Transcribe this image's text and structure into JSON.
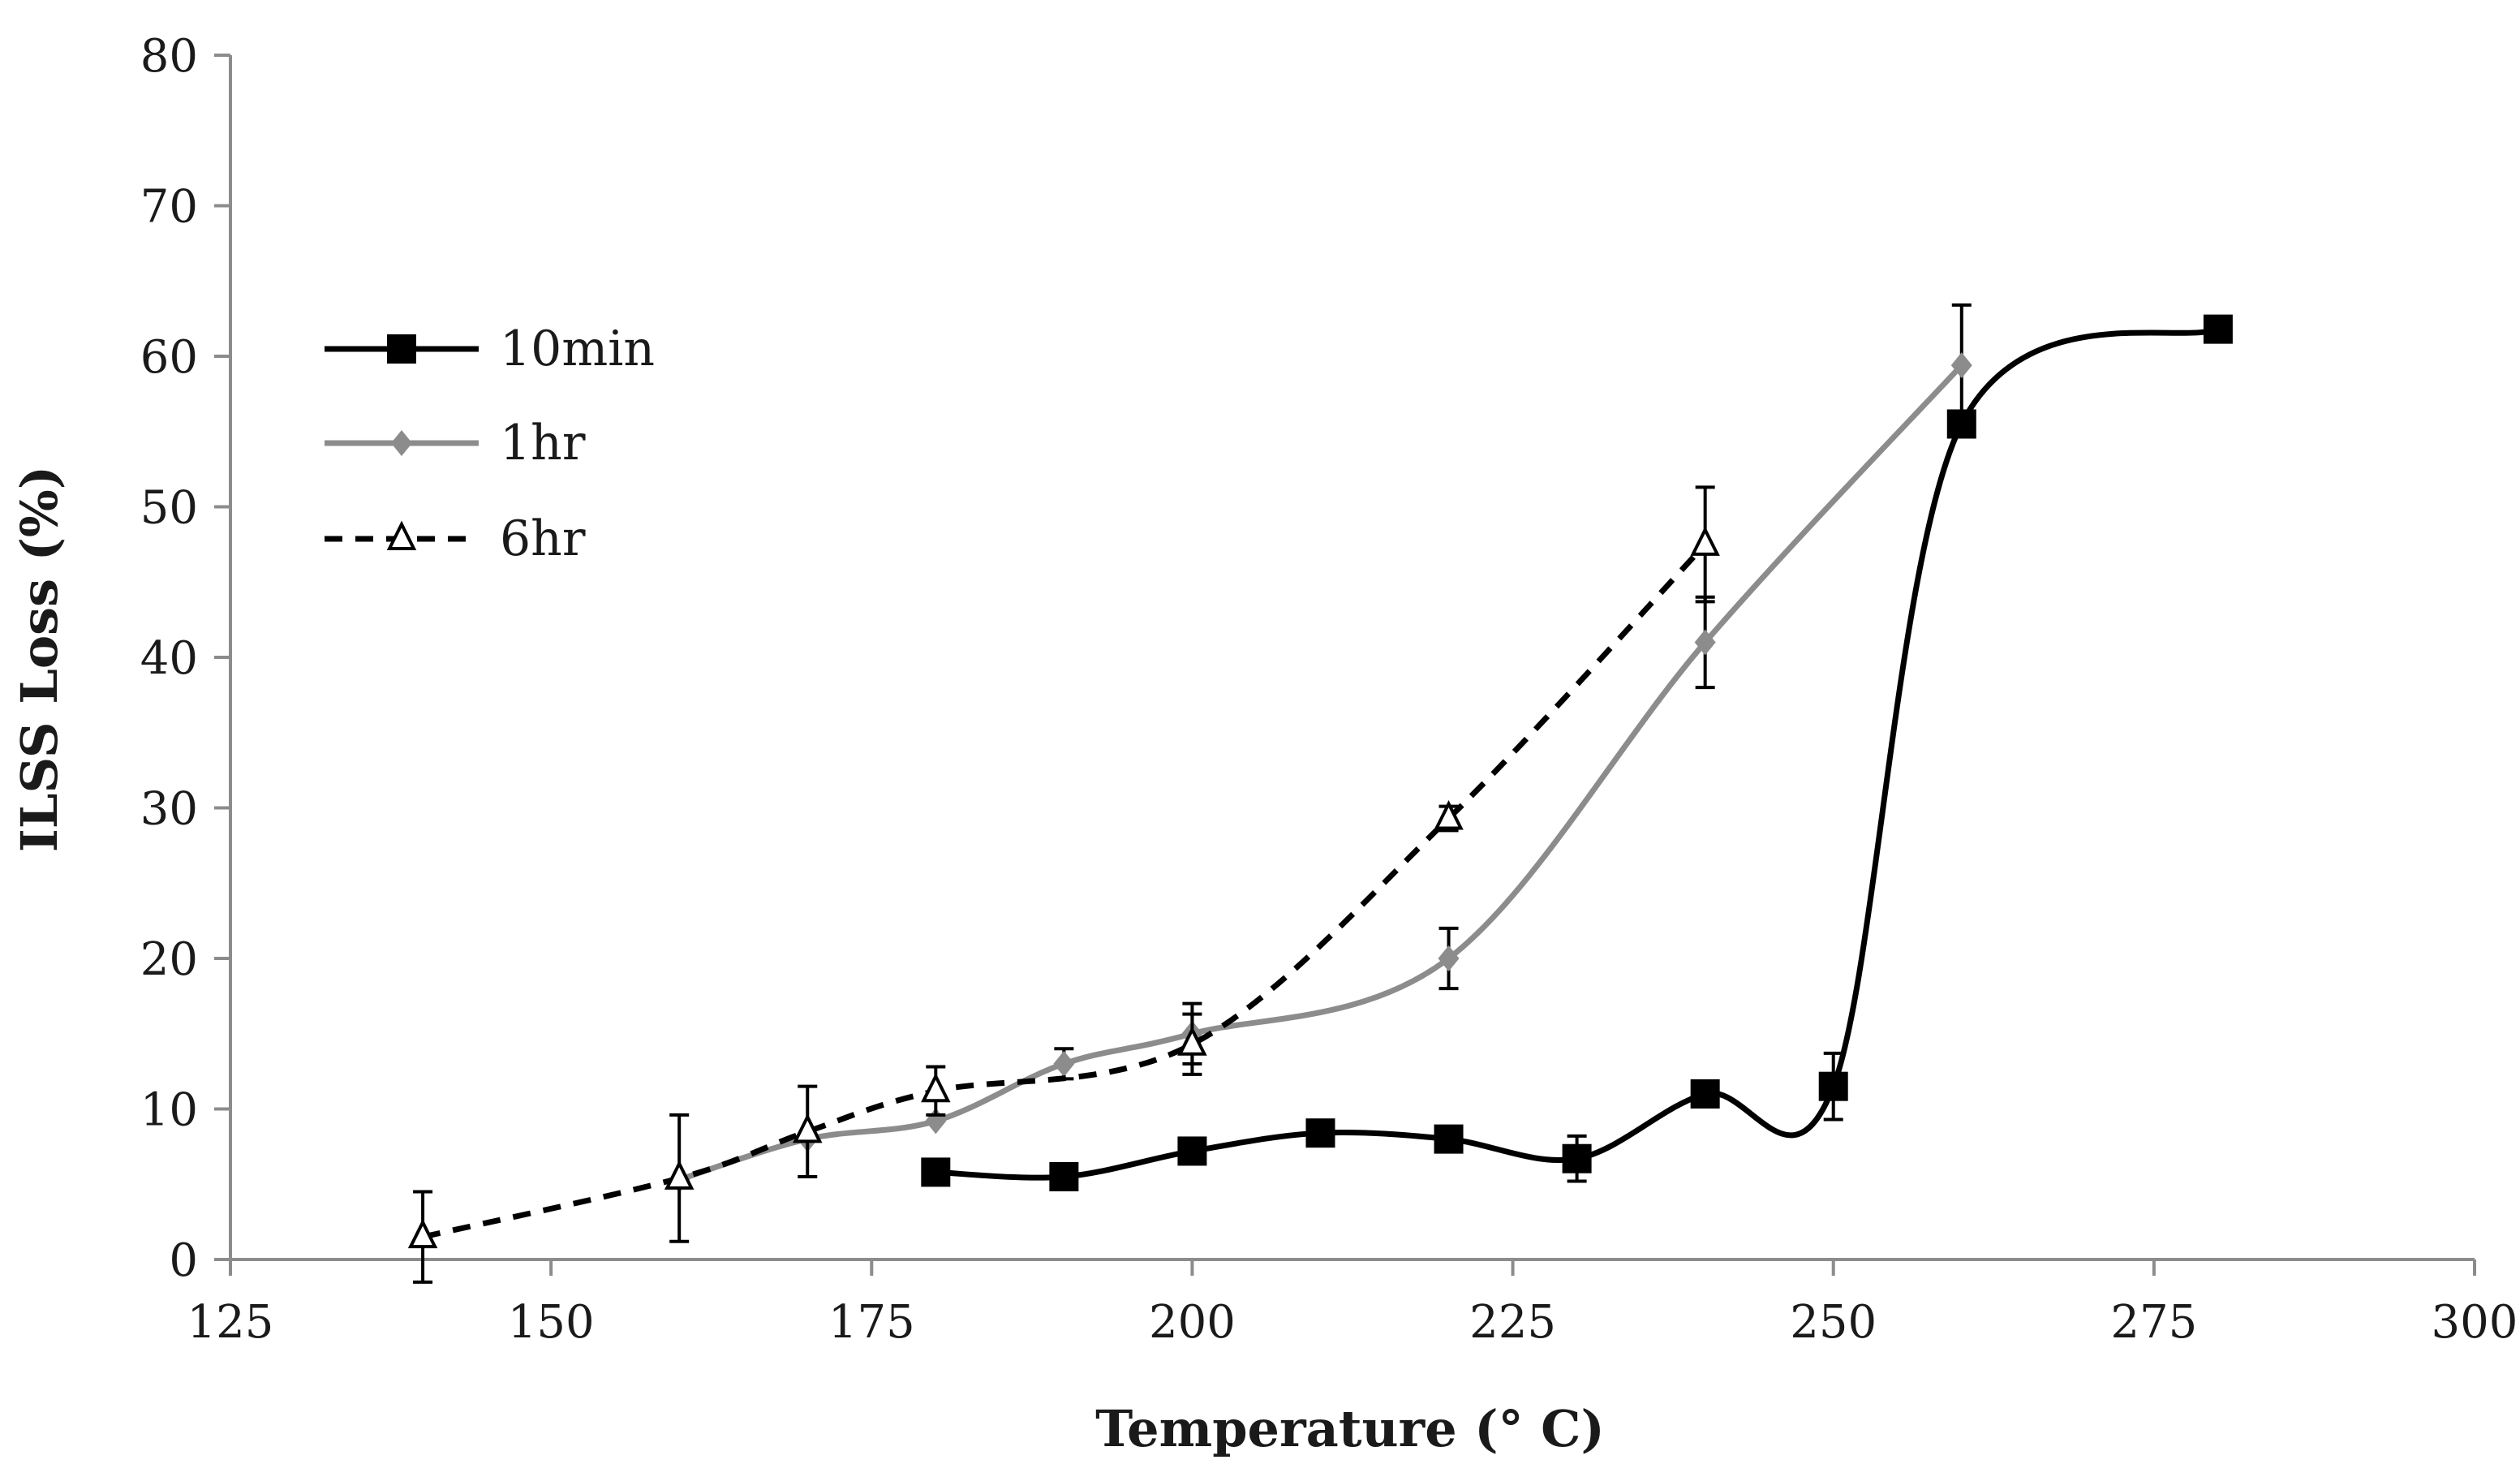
{
  "chart_data": {
    "type": "line",
    "title": "",
    "xlabel": "Temperature (° C)",
    "ylabel": "ILSS Loss (%)",
    "xlim": [
      125,
      300
    ],
    "ylim": [
      0,
      80
    ],
    "xticks": [
      125,
      150,
      175,
      200,
      225,
      250,
      275,
      300
    ],
    "yticks": [
      0,
      10,
      20,
      30,
      40,
      50,
      60,
      70,
      80
    ],
    "grid": false,
    "legend_position": "upper-left",
    "series": [
      {
        "name": "10min",
        "color": "#000000",
        "line_style": "solid",
        "marker": "square",
        "x": [
          180,
          190,
          200,
          210,
          220,
          230,
          240,
          250,
          260,
          280
        ],
        "y": [
          5.8,
          5.5,
          7.2,
          8.4,
          8.0,
          6.7,
          11.0,
          11.5,
          55.5,
          61.8
        ],
        "error": [
          null,
          null,
          null,
          null,
          null,
          1.5,
          null,
          2.2,
          null,
          null
        ]
      },
      {
        "name": "1hr",
        "color": "#8c8c8c",
        "line_style": "solid",
        "marker": "diamond",
        "x": [
          160,
          170,
          180,
          190,
          200,
          220,
          240,
          260
        ],
        "y": [
          5.3,
          8.0,
          9.2,
          13.0,
          15.0,
          20.0,
          41.0,
          59.4
        ],
        "error": [
          null,
          null,
          null,
          1.0,
          2.0,
          2.0,
          3.0,
          4.0
        ]
      },
      {
        "name": "6hr",
        "color": "#000000",
        "line_style": "dashed",
        "marker": "triangle-open",
        "x": [
          140,
          160,
          170,
          180,
          200,
          220,
          240
        ],
        "y": [
          1.5,
          5.4,
          8.5,
          11.2,
          14.3,
          29.3,
          47.5
        ],
        "error": [
          3.0,
          4.2,
          3.0,
          1.6,
          2.0,
          0.8,
          3.8
        ]
      }
    ]
  }
}
